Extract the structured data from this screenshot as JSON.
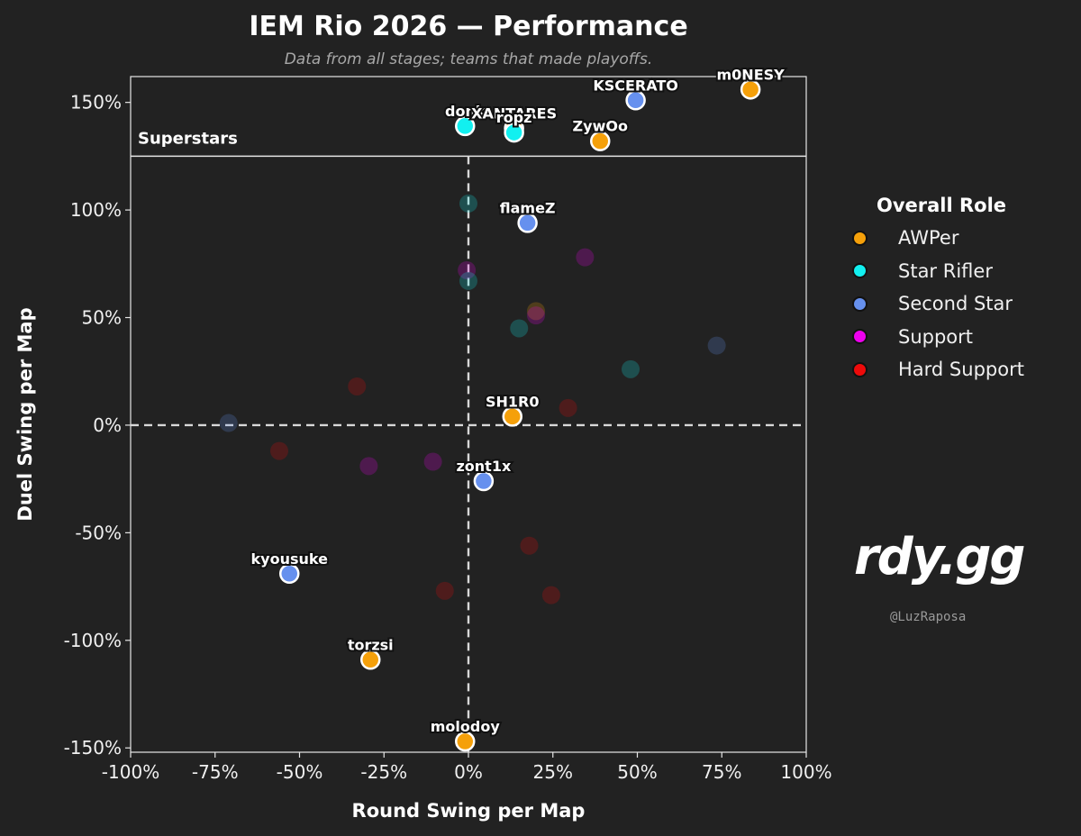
{
  "chart_data": {
    "type": "scatter",
    "title": "IEM Rio 2026 — Performance",
    "subtitle": "Data from all stages; teams that made playoffs.",
    "xlabel": "Round Swing per Map",
    "ylabel": "Duel Swing per Map",
    "xlim": [
      -100,
      100
    ],
    "ylim": [
      -152,
      162
    ],
    "xticks": [
      -100,
      -75,
      -50,
      -25,
      0,
      25,
      50,
      75,
      100
    ],
    "xtick_labels": [
      "-100%",
      "-75%",
      "-50%",
      "-25%",
      "0%",
      "25%",
      "50%",
      "75%",
      "100%"
    ],
    "yticks": [
      -150,
      -100,
      -50,
      0,
      50,
      100,
      150
    ],
    "ytick_labels": [
      "-150%",
      "-100%",
      "-50%",
      "0%",
      "50%",
      "100%",
      "150%"
    ],
    "reference_lines": {
      "x": 0,
      "y": 0
    },
    "region": {
      "label": "Superstars",
      "y_min": 125
    },
    "legend": {
      "title": "Overall Role",
      "position": "right",
      "entries": [
        {
          "name": "AWPer",
          "color": "#f5a00a"
        },
        {
          "name": "Star Rifler",
          "color": "#12f0f0"
        },
        {
          "name": "Second Star",
          "color": "#6690ee"
        },
        {
          "name": "Support",
          "color": "#ee00ee"
        },
        {
          "name": "Hard Support",
          "color": "#ee0a0a"
        }
      ]
    },
    "labeled_points": [
      {
        "name": "m0NESY",
        "role": "AWPer",
        "x": 83.5,
        "y": 156
      },
      {
        "name": "KSCERATO",
        "role": "Second Star",
        "x": 49.5,
        "y": 151
      },
      {
        "name": "ZywOo",
        "role": "AWPer",
        "x": 39,
        "y": 132
      },
      {
        "name": "donk",
        "role": "Star Rifler",
        "x": -1,
        "y": 139
      },
      {
        "name": "XANTARES",
        "role": "AWPer",
        "x": 13.5,
        "y": 138
      },
      {
        "name": "ropz",
        "role": "Star Rifler",
        "x": 13.5,
        "y": 136
      },
      {
        "name": "flameZ",
        "role": "Second Star",
        "x": 17.5,
        "y": 94
      },
      {
        "name": "SH1R0",
        "role": "AWPer",
        "x": 13,
        "y": 4
      },
      {
        "name": "zont1x",
        "role": "Second Star",
        "x": 4.5,
        "y": -26
      },
      {
        "name": "kyousuke",
        "role": "Second Star",
        "x": -53,
        "y": -69
      },
      {
        "name": "torzsi",
        "role": "AWPer",
        "x": -29,
        "y": -109
      },
      {
        "name": "molodoy",
        "role": "AWPer",
        "x": -1,
        "y": -147
      }
    ],
    "faded_points": [
      {
        "role": "Star Rifler",
        "x": 0,
        "y": 103
      },
      {
        "role": "Support",
        "x": 34.5,
        "y": 78
      },
      {
        "role": "Support",
        "x": -0.5,
        "y": 72
      },
      {
        "role": "Star Rifler",
        "x": 0,
        "y": 67
      },
      {
        "role": "AWPer",
        "x": 20,
        "y": 53
      },
      {
        "role": "Support",
        "x": 20,
        "y": 51
      },
      {
        "role": "Star Rifler",
        "x": 15,
        "y": 45
      },
      {
        "role": "Second Star",
        "x": 73.5,
        "y": 37
      },
      {
        "role": "Star Rifler",
        "x": 48,
        "y": 26
      },
      {
        "role": "Hard Support",
        "x": -33,
        "y": 18
      },
      {
        "role": "Hard Support",
        "x": 29.5,
        "y": 8
      },
      {
        "role": "Second Star",
        "x": -71,
        "y": 1
      },
      {
        "role": "Hard Support",
        "x": -56,
        "y": -12
      },
      {
        "role": "Support",
        "x": -29.5,
        "y": -19
      },
      {
        "role": "Support",
        "x": -10.5,
        "y": -17
      },
      {
        "role": "Hard Support",
        "x": 18,
        "y": -56
      },
      {
        "role": "Hard Support",
        "x": -7,
        "y": -77
      },
      {
        "role": "Hard Support",
        "x": 24.5,
        "y": -79
      }
    ]
  },
  "branding": {
    "logo_text": "rdy.gg",
    "handle": "@LuzRaposa"
  }
}
